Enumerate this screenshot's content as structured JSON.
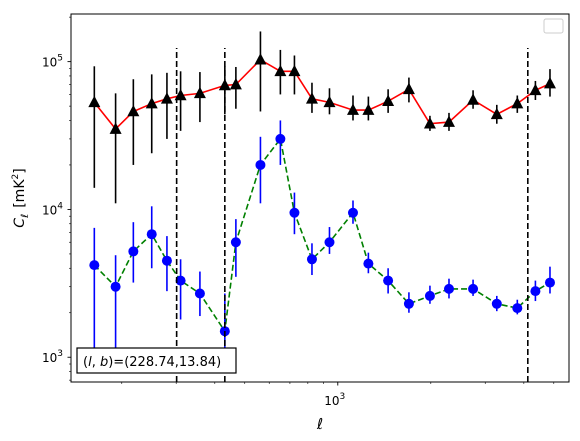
{
  "chart_data": {
    "type": "scatter",
    "xlabel": "ℓ",
    "ylabel_main": "C",
    "ylabel_sub": "ℓ",
    "ylabel_unit_pre": "[mK",
    "ylabel_unit_sup": "2",
    "ylabel_unit_post": "]",
    "x_scale": "log",
    "y_scale": "log",
    "xlim": [
      137,
      5600
    ],
    "ylim": [
      680,
      210000
    ],
    "x_ticks": [
      {
        "value": 1000,
        "base": "10",
        "exp": "3"
      }
    ],
    "y_ticks": [
      {
        "value": 1000,
        "base": "10",
        "exp": "3"
      },
      {
        "value": 10000,
        "base": "10",
        "exp": "4"
      },
      {
        "value": 100000,
        "base": "10",
        "exp": "5"
      }
    ],
    "vlines": [
      301,
      431,
      4120
    ],
    "legend": "top-right, empty",
    "annotation": {
      "pre": "(",
      "l": "l",
      "sep": ", ",
      "b": "b",
      "post": ")=(228.74,13.84)"
    },
    "series": [
      {
        "line_color": "#ff0000",
        "line_style": "solid",
        "marker": "triangle",
        "marker_color": "#000000",
        "errorbar_color": "#000000",
        "x": [
          163,
          191,
          218,
          250,
          280,
          310,
          358,
          431,
          468,
          562,
          652,
          724,
          825,
          940,
          1120,
          1256,
          1455,
          1699,
          1987,
          2290,
          2740,
          3270,
          3810,
          4360,
          4860
        ],
        "y": [
          53000,
          35000,
          46000,
          52000,
          56000,
          59000,
          61000,
          69000,
          70000,
          103000,
          86000,
          86000,
          56000,
          53000,
          47000,
          47000,
          54000,
          65000,
          38000,
          39000,
          55000,
          44000,
          52000,
          64000,
          71000
        ],
        "y_low": [
          14000,
          11000,
          20000,
          24000,
          30000,
          34000,
          39000,
          44000,
          48000,
          46000,
          60000,
          60000,
          45000,
          44000,
          40000,
          40000,
          45000,
          53000,
          34000,
          34000,
          48000,
          38000,
          45000,
          55000,
          58000
        ],
        "y_high": [
          93000,
          61000,
          76000,
          82000,
          84000,
          86000,
          85000,
          93000,
          92000,
          160000,
          120000,
          110000,
          72000,
          66000,
          59000,
          58000,
          65000,
          78000,
          43000,
          45000,
          64000,
          51000,
          59000,
          74000,
          89000
        ]
      },
      {
        "line_color": "#008000",
        "line_style": "dashed",
        "marker": "circle",
        "marker_color": "#0000ff",
        "errorbar_color": "#0000ff",
        "x": [
          163,
          191,
          218,
          250,
          280,
          310,
          358,
          431,
          468,
          562,
          652,
          724,
          825,
          940,
          1120,
          1256,
          1455,
          1699,
          1987,
          2290,
          2740,
          3270,
          3810,
          4360,
          4860
        ],
        "y": [
          4200,
          3000,
          5200,
          6800,
          4500,
          3300,
          2700,
          1500,
          6000,
          20000,
          30000,
          9500,
          4600,
          6000,
          9500,
          4300,
          3300,
          2300,
          2600,
          2900,
          2900,
          2300,
          2150,
          2800,
          3200
        ],
        "y_low": [
          1000,
          1000,
          3200,
          4000,
          2800,
          1800,
          1900,
          1000,
          3500,
          11000,
          20000,
          6800,
          3600,
          5000,
          8000,
          3700,
          2700,
          2000,
          2300,
          2500,
          2600,
          2050,
          1950,
          2400,
          2700
        ],
        "y_high": [
          7500,
          4900,
          8200,
          10500,
          6600,
          4600,
          3800,
          2700,
          8600,
          31000,
          40000,
          13000,
          5900,
          7600,
          11500,
          5100,
          4000,
          2750,
          3050,
          3400,
          3350,
          2600,
          2450,
          3300,
          4100
        ]
      }
    ]
  }
}
